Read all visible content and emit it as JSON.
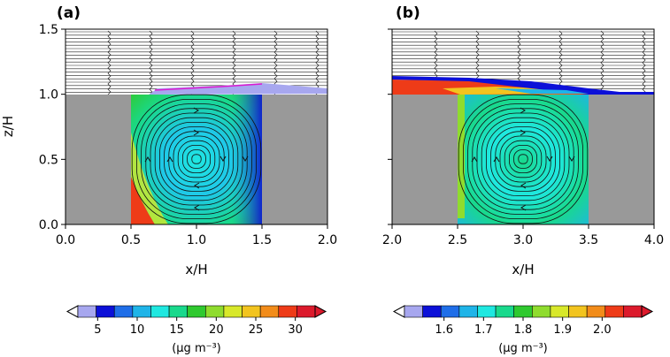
{
  "chart_data": [
    {
      "type": "heatmap",
      "panel_label": "(a)",
      "xlabel": "x/H",
      "ylabel": "z/H",
      "xlim": [
        0.0,
        2.0
      ],
      "ylim": [
        0.0,
        1.5
      ],
      "xticks": [
        "0.0",
        "0.5",
        "1.0",
        "1.5",
        "2.0"
      ],
      "yticks": [
        "0.0",
        "0.5",
        "1.0",
        "1.5"
      ],
      "buildings": [
        {
          "x": [
            0.0,
            0.5
          ],
          "z": [
            0.0,
            1.0
          ]
        },
        {
          "x": [
            1.5,
            2.0
          ],
          "z": [
            0.0,
            1.0
          ]
        }
      ],
      "vortex_center": {
        "x": 1.0,
        "z": 0.52
      },
      "colorbar": {
        "ticks": [
          "5",
          "10",
          "15",
          "20",
          "25",
          "30"
        ],
        "tick_values": [
          5,
          10,
          15,
          20,
          25,
          30
        ],
        "range": [
          2.5,
          32.5
        ],
        "units": "(µg m⁻³)"
      },
      "field_samples": [
        {
          "x": 0.55,
          "z": 0.05,
          "value": 32
        },
        {
          "x": 0.6,
          "z": 0.5,
          "value": 16
        },
        {
          "x": 1.0,
          "z": 0.5,
          "value": 12
        },
        {
          "x": 1.45,
          "z": 0.8,
          "value": 6
        },
        {
          "x": 1.2,
          "z": 1.02,
          "value": 3
        }
      ]
    },
    {
      "type": "heatmap",
      "panel_label": "(b)",
      "xlabel": "x/H",
      "ylabel": "",
      "xlim": [
        2.0,
        4.0
      ],
      "ylim": [
        0.0,
        1.5
      ],
      "xticks": [
        "2.0",
        "2.5",
        "3.0",
        "3.5",
        "4.0"
      ],
      "yticks": [],
      "buildings": [
        {
          "x": [
            2.0,
            2.5
          ],
          "z": [
            0.0,
            1.0
          ]
        },
        {
          "x": [
            3.5,
            4.0
          ],
          "z": [
            0.0,
            1.0
          ]
        }
      ],
      "vortex_center": {
        "x": 3.0,
        "z": 0.52
      },
      "colorbar": {
        "ticks": [
          "1.6",
          "1.7",
          "1.8",
          "1.9",
          "2.0"
        ],
        "tick_values": [
          1.6,
          1.7,
          1.8,
          1.9,
          2.0
        ],
        "range": [
          1.5,
          2.1
        ],
        "units": "(µg m⁻³)"
      },
      "field_samples": [
        {
          "x": 2.1,
          "z": 1.05,
          "value": 2.05
        },
        {
          "x": 2.55,
          "z": 0.85,
          "value": 1.8
        },
        {
          "x": 3.0,
          "z": 0.5,
          "value": 1.72
        },
        {
          "x": 3.4,
          "z": 0.2,
          "value": 1.68
        },
        {
          "x": 3.3,
          "z": 1.03,
          "value": 1.58
        }
      ]
    }
  ],
  "colors": {
    "building": "#999999",
    "colormap": [
      "#a7a7ef",
      "#0c10d8",
      "#1f6ee8",
      "#1fb4e8",
      "#1fe8e0",
      "#19d98c",
      "#2fc92f",
      "#8fdc2e",
      "#d8e82a",
      "#f2c41f",
      "#f28c1a",
      "#ee3b18",
      "#dc1a2c"
    ]
  }
}
